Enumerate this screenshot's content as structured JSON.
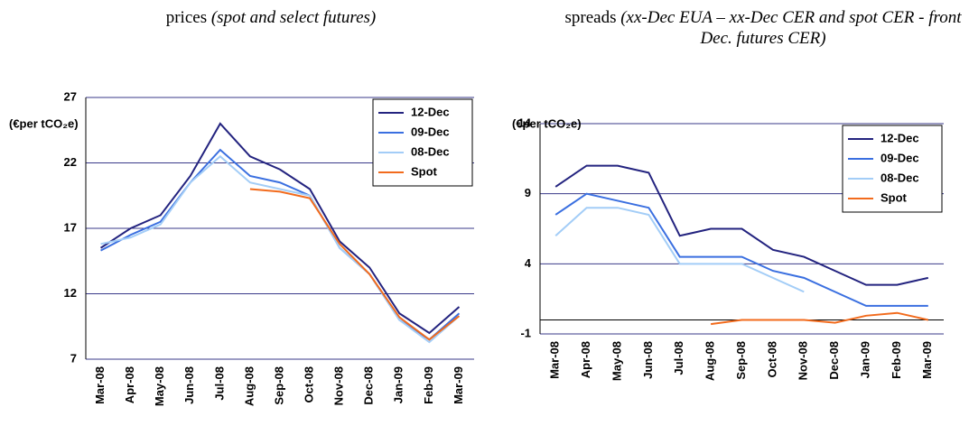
{
  "chart_data": [
    {
      "type": "line",
      "title": "prices",
      "subtitle": "(spot and select futures)",
      "y_label": "(€per tCO₂e)",
      "categories": [
        "Mar-08",
        "Apr-08",
        "May-08",
        "Jun-08",
        "Jul-08",
        "Aug-08",
        "Sep-08",
        "Oct-08",
        "Nov-08",
        "Dec-08",
        "Jan-09",
        "Feb-09",
        "Mar-09"
      ],
      "series": [
        {
          "name": "12-Dec",
          "color": "#23237f",
          "values": [
            15.5,
            17,
            18,
            21,
            25,
            22.5,
            21.5,
            20,
            16,
            14,
            10.5,
            9,
            11
          ]
        },
        {
          "name": "09-Dec",
          "color": "#3a6fe0",
          "values": [
            15.3,
            16.5,
            17.5,
            20.5,
            23,
            21,
            20.5,
            19.5,
            15.5,
            13.5,
            10,
            8.5,
            10.5
          ]
        },
        {
          "name": "08-Dec",
          "color": "#a3cdf7",
          "values": [
            15.8,
            16.3,
            17.3,
            20.5,
            22.5,
            20.5,
            20,
            19.5,
            15.5,
            13.5,
            10,
            8.3,
            10.3
          ]
        },
        {
          "name": "Spot",
          "color": "#f26b1d",
          "values": [
            null,
            null,
            null,
            null,
            null,
            20,
            19.8,
            19.3,
            15.8,
            13.5,
            10.2,
            8.5,
            10.3
          ]
        }
      ],
      "ylim": [
        7,
        27
      ],
      "yticks": [
        7,
        12,
        17,
        22,
        27
      ],
      "grid": true,
      "legend": "upper right"
    },
    {
      "type": "line",
      "title": "spreads",
      "subtitle": "(xx-Dec EUA – xx-Dec CER and spot CER - front Dec. futures CER)",
      "y_label": "(€per tCO₂e)",
      "categories": [
        "Mar-08",
        "Apr-08",
        "May-08",
        "Jun-08",
        "Jul-08",
        "Aug-08",
        "Sep-08",
        "Oct-08",
        "Nov-08",
        "Dec-08",
        "Jan-09",
        "Feb-09",
        "Mar-09"
      ],
      "series": [
        {
          "name": "12-Dec",
          "color": "#23237f",
          "values": [
            9.5,
            11,
            11,
            10.5,
            6,
            6.5,
            6.5,
            5,
            4.5,
            3.5,
            2.5,
            2.5,
            3
          ]
        },
        {
          "name": "09-Dec",
          "color": "#3a6fe0",
          "values": [
            7.5,
            9,
            8.5,
            8,
            4.5,
            4.5,
            4.5,
            3.5,
            3,
            2,
            1,
            1,
            1
          ]
        },
        {
          "name": "08-Dec",
          "color": "#a3cdf7",
          "values": [
            6,
            8,
            8,
            7.5,
            4,
            4,
            4,
            3,
            2,
            null,
            null,
            null,
            null
          ]
        },
        {
          "name": "Spot",
          "color": "#f26b1d",
          "values": [
            null,
            null,
            null,
            null,
            null,
            -0.3,
            0,
            0,
            0,
            -0.2,
            0.3,
            0.5,
            0
          ]
        }
      ],
      "ylim": [
        -1,
        14
      ],
      "yticks": [
        -1,
        4,
        9,
        14
      ],
      "grid": true,
      "legend": "upper right"
    }
  ]
}
